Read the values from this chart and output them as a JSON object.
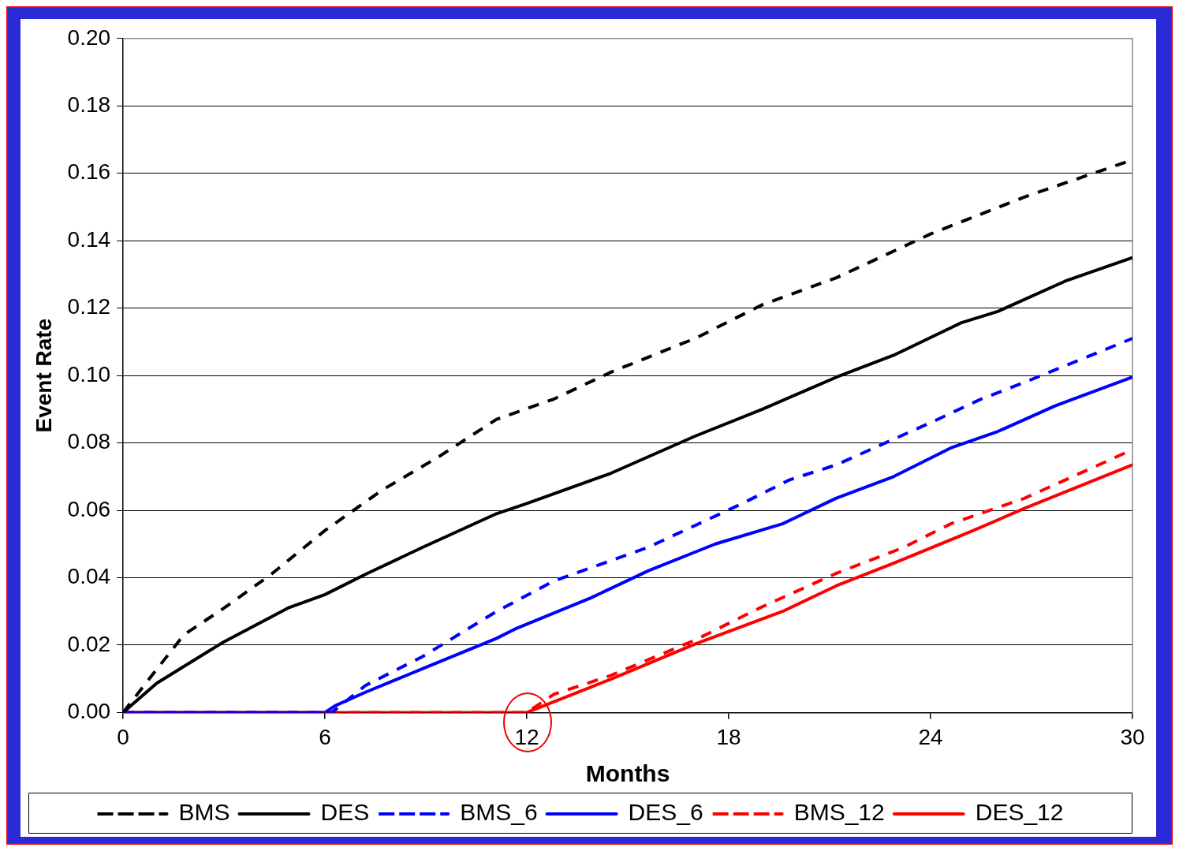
{
  "chart_data": {
    "type": "line",
    "xlabel": "Months",
    "ylabel": "Event Rate",
    "xlim": [
      0,
      30
    ],
    "xticks": [
      0,
      6,
      12,
      18,
      24,
      30
    ],
    "ylim": [
      0,
      0.2
    ],
    "yticks": [
      {
        "value": 0,
        "label": "0.00"
      },
      {
        "value": 0.02,
        "label": "0.02"
      },
      {
        "value": 0.04,
        "label": "0.04"
      },
      {
        "value": 0.06,
        "label": "0.06"
      },
      {
        "value": 0.08,
        "label": "0.08"
      },
      {
        "value": 0.1,
        "label": "0.10"
      },
      {
        "value": 0.12,
        "label": "0.12"
      },
      {
        "value": 0.14,
        "label": "0.14"
      },
      {
        "value": 0.16,
        "label": "0.16"
      },
      {
        "value": 0.18,
        "label": "0.18"
      },
      {
        "value": 0.2,
        "label": "0.20"
      }
    ],
    "grid": "y",
    "legend": "bottom",
    "marker": "none",
    "series": [
      {
        "name": "BMS",
        "color": "#000000",
        "line_style": "dashed",
        "x": [
          0,
          0.7,
          1.8,
          3,
          4.4,
          6,
          7.7,
          9.4,
          11.1,
          12.8,
          14.5,
          17,
          19,
          21.2,
          24,
          26.8,
          30
        ],
        "values": [
          0,
          0.009,
          0.023,
          0.031,
          0.041,
          0.054,
          0.066,
          0.076,
          0.087,
          0.093,
          0.101,
          0.111,
          0.121,
          0.129,
          0.142,
          0.153,
          0.164
        ]
      },
      {
        "name": "DES",
        "color": "#000000",
        "line_style": "solid",
        "x": [
          0,
          1,
          3,
          4.9,
          6,
          7.2,
          8.9,
          11.1,
          12,
          14.5,
          17,
          19,
          21.2,
          22.9,
          24.9,
          26,
          28,
          30
        ],
        "values": [
          0,
          0.0087,
          0.021,
          0.031,
          0.035,
          0.041,
          0.049,
          0.059,
          0.062,
          0.071,
          0.082,
          0.09,
          0.0995,
          0.106,
          0.1156,
          0.119,
          0.128,
          0.135
        ]
      },
      {
        "name": "BMS_6",
        "color": "#0000ff",
        "line_style": "dashed",
        "x": [
          0,
          6,
          6.2,
          7.2,
          8.9,
          11.1,
          12.8,
          15.6,
          18.4,
          19.8,
          21.2,
          24,
          25.5,
          26.8,
          30
        ],
        "values": [
          0,
          0,
          0,
          0.008,
          0.0166,
          0.03,
          0.039,
          0.049,
          0.062,
          0.069,
          0.0735,
          0.086,
          0.093,
          0.098,
          0.111
        ]
      },
      {
        "name": "DES_6",
        "color": "#0000ff",
        "line_style": "solid",
        "x": [
          0,
          6,
          6.3,
          7.2,
          8.9,
          11.1,
          11.7,
          13.9,
          15.6,
          17.6,
          19.6,
          21.2,
          22.9,
          24.6,
          26,
          27.7,
          30
        ],
        "values": [
          0,
          0,
          0.002,
          0.006,
          0.013,
          0.022,
          0.025,
          0.034,
          0.042,
          0.05,
          0.056,
          0.0636,
          0.07,
          0.0785,
          0.0834,
          0.091,
          0.0995
        ]
      },
      {
        "name": "BMS_12",
        "color": "#ff0000",
        "line_style": "dashed",
        "x": [
          0,
          12,
          12.8,
          14.5,
          17,
          19,
          21.2,
          23.2,
          24.6,
          26.8,
          30
        ],
        "values": [
          0,
          0,
          0.0054,
          0.011,
          0.0215,
          0.0314,
          0.0413,
          0.049,
          0.056,
          0.0636,
          0.078
        ]
      },
      {
        "name": "DES_12",
        "color": "#ff0000",
        "line_style": "solid",
        "x": [
          0,
          12,
          14.5,
          17,
          19.6,
          21.2,
          22.9,
          25.2,
          26.8,
          30
        ],
        "values": [
          0,
          0,
          0.0099,
          0.0203,
          0.03,
          0.0376,
          0.0443,
          0.0537,
          0.0606,
          0.0735
        ]
      }
    ]
  }
}
